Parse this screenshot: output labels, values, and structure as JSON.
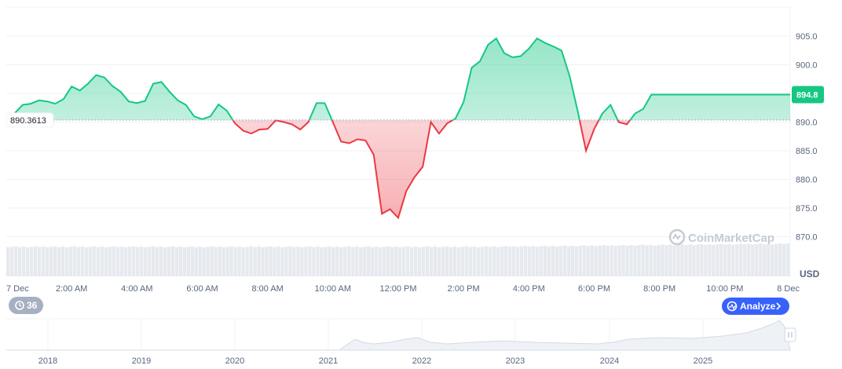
{
  "chart_data": {
    "type": "area",
    "y_unit": "USD",
    "ylim": [
      868,
      908
    ],
    "y_ticks": [
      "905.0",
      "900.0",
      "895.0",
      "890.0",
      "885.0",
      "880.0",
      "875.0",
      "870.0"
    ],
    "y_tick_values": [
      905,
      900,
      895,
      890,
      885,
      880,
      875,
      870
    ],
    "x_ticks": [
      "7 Dec",
      "2:00 AM",
      "4:00 AM",
      "6:00 AM",
      "8:00 AM",
      "10:00 AM",
      "12:00 PM",
      "2:00 PM",
      "4:00 PM",
      "6:00 PM",
      "8:00 PM",
      "10:00 PM",
      "8 Dec"
    ],
    "x_tick_hours": [
      0,
      2,
      4,
      6,
      8,
      10,
      12,
      14,
      16,
      18,
      20,
      22,
      24
    ],
    "baseline": {
      "value": 890.3613,
      "label": "890.3613"
    },
    "current": {
      "value": 894.8,
      "label": "894.8"
    },
    "colors": {
      "up": "#16c784",
      "down": "#ea3943"
    },
    "price": {
      "hours": [
        0,
        0.25,
        0.5,
        0.75,
        1.0,
        1.25,
        1.5,
        1.75,
        2.0,
        2.25,
        2.5,
        2.75,
        3.0,
        3.25,
        3.5,
        3.75,
        4.0,
        4.25,
        4.5,
        4.75,
        5.0,
        5.25,
        5.5,
        5.75,
        6.0,
        6.25,
        6.5,
        6.75,
        7.0,
        7.25,
        7.5,
        7.75,
        8.0,
        8.25,
        8.5,
        8.75,
        9.0,
        9.25,
        9.5,
        9.75,
        10.0,
        10.25,
        10.5,
        10.75,
        11.0,
        11.25,
        11.5,
        11.75,
        12.0,
        12.25,
        12.5,
        12.75,
        13.0,
        13.25,
        13.5,
        13.75,
        14.0,
        14.25,
        14.5,
        14.75,
        15.0,
        15.25,
        15.5,
        15.75,
        16.0,
        16.25,
        16.5,
        16.75,
        17.0,
        17.25,
        17.5,
        17.75,
        18.0,
        18.25,
        18.5,
        18.75,
        19.0,
        19.25,
        19.5,
        19.75,
        20.0,
        20.25,
        20.5,
        20.75,
        21.0,
        21.25,
        21.5,
        21.75,
        22.0,
        22.25,
        22.5,
        22.75,
        23.0,
        23.25,
        23.5,
        23.75,
        24.0
      ],
      "values": [
        890.5,
        891.5,
        893.0,
        893.2,
        893.8,
        893.6,
        893.2,
        894.0,
        896.2,
        895.5,
        896.7,
        898.2,
        897.8,
        896.3,
        895.3,
        893.6,
        893.3,
        893.7,
        896.7,
        897.0,
        895.3,
        893.8,
        893.0,
        891.0,
        890.5,
        891.0,
        893.1,
        892.0,
        889.8,
        888.5,
        888.0,
        888.7,
        888.8,
        890.3,
        890.0,
        889.6,
        888.7,
        890.0,
        893.3,
        893.3,
        890.0,
        886.6,
        886.3,
        887.0,
        886.8,
        884.3,
        874.0,
        874.8,
        873.3,
        878.0,
        880.4,
        882.2,
        890.0,
        888.0,
        889.8,
        890.6,
        893.5,
        899.5,
        900.6,
        903.5,
        904.6,
        902.0,
        901.3,
        901.5,
        902.8,
        904.6,
        903.8,
        903.2,
        902.5,
        898.0,
        891.8,
        885.0,
        888.8,
        891.5,
        893.0,
        890.0,
        889.6,
        891.5,
        892.3,
        894.8,
        894.8,
        894.8,
        894.8,
        894.8,
        894.8,
        894.8,
        894.8,
        894.8,
        894.8,
        894.8,
        894.8,
        894.8,
        894.8,
        894.8,
        894.8,
        894.8,
        894.8
      ]
    },
    "navigator": {
      "x_ticks": [
        "2018",
        "2019",
        "2020",
        "2021",
        "2022",
        "2023",
        "2024",
        "2025"
      ]
    },
    "badges": {
      "history_count": "36",
      "analyze_label": "Analyze",
      "watermark": "CoinMarketCap"
    }
  }
}
